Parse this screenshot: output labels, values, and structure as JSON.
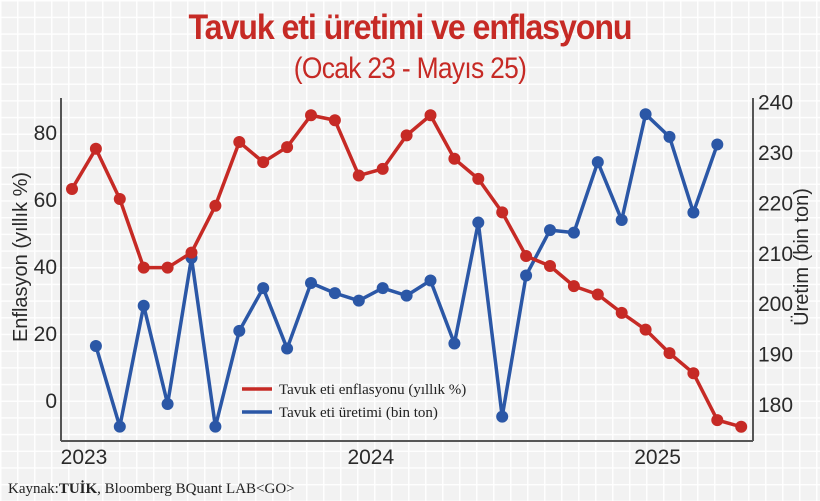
{
  "title": "Tavuk eti üretimi ve enflasyonu",
  "subtitle": "(Ocak 23 - Mayıs 25)",
  "source": {
    "label": "Kaynak:",
    "primary": "TUİK",
    "rest": ", Bloomberg BQuant LAB<GO>"
  },
  "colors": {
    "title": "#c62a25",
    "inflation": "#c62a25",
    "production": "#2b57a6",
    "axis": "#555555",
    "background": "#f2f2f2"
  },
  "axes": {
    "left_title": "Enflasyon (yıllık %)",
    "right_title": "Üretim (bin ton)",
    "left_ticks": [
      "0",
      "20",
      "40",
      "60",
      "80"
    ],
    "right_ticks": [
      "180",
      "190",
      "200",
      "210",
      "220",
      "230",
      "240"
    ],
    "x_ticks": [
      "2023",
      "2024",
      "2025"
    ]
  },
  "legend": {
    "inflation": "Tavuk eti enflasyonu (yıllık %)",
    "production": "Tavuk eti üretimi (bin ton)"
  },
  "chart_data": {
    "type": "line",
    "title": "Tavuk eti üretimi ve enflasyonu",
    "subtitle": "(Ocak 23 - Mayıs 25)",
    "xlabel": "",
    "ylabel": "Enflasyon (yıllık %)",
    "ylabel_right": "Üretim (bin ton)",
    "ylim": [
      -12,
      92
    ],
    "ylim_right": [
      172,
      240
    ],
    "grid": true,
    "legend_position": "lower center (inside plot)",
    "x": [
      "2023-01",
      "2023-02",
      "2023-03",
      "2023-04",
      "2023-05",
      "2023-06",
      "2023-07",
      "2023-08",
      "2023-09",
      "2023-10",
      "2023-11",
      "2023-12",
      "2024-01",
      "2024-02",
      "2024-03",
      "2024-04",
      "2024-05",
      "2024-06",
      "2024-07",
      "2024-08",
      "2024-09",
      "2024-10",
      "2024-11",
      "2024-12",
      "2025-01",
      "2025-02",
      "2025-03",
      "2025-04",
      "2025-05"
    ],
    "x_tick_labels": [
      "2023",
      "2024",
      "2025"
    ],
    "series": [
      {
        "name": "Tavuk eti enflasyonu (yıllık %)",
        "axis": "left",
        "color": "#c62a25",
        "values": [
          63,
          75,
          60,
          39.5,
          39.5,
          44,
          58,
          77,
          71,
          75.5,
          85,
          83.5,
          67,
          69,
          79,
          85,
          72,
          66,
          56,
          43,
          40,
          34,
          31.5,
          26,
          21,
          14,
          8,
          -6,
          -8
        ]
      },
      {
        "name": "Tavuk eti üretimi (bin ton)",
        "axis": "right",
        "color": "#2b57a6",
        "values": [
          null,
          191.5,
          175.5,
          199.5,
          180,
          209,
          175.5,
          194.5,
          203,
          191,
          204,
          202,
          200.5,
          203,
          201.5,
          204.5,
          192,
          216,
          177.5,
          205.5,
          214.5,
          214,
          228,
          216.5,
          237.5,
          233,
          218,
          231.5,
          null
        ]
      }
    ]
  }
}
